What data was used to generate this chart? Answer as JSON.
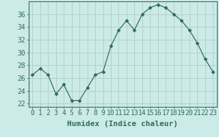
{
  "x": [
    0,
    1,
    2,
    3,
    4,
    5,
    6,
    7,
    8,
    9,
    10,
    11,
    12,
    13,
    14,
    15,
    16,
    17,
    18,
    19,
    20,
    21,
    22,
    23
  ],
  "y": [
    26.5,
    27.5,
    26.5,
    23.5,
    25.0,
    22.5,
    22.5,
    24.5,
    26.5,
    27.0,
    31.0,
    33.5,
    35.0,
    33.5,
    36.0,
    37.0,
    37.5,
    37.0,
    36.0,
    35.0,
    33.5,
    31.5,
    29.0,
    27.0
  ],
  "line_color": "#2d6b5e",
  "marker": "D",
  "marker_size": 2.5,
  "bg_color": "#cceae8",
  "grid_color": "#b0d0ce",
  "ylabel_ticks": [
    22,
    24,
    26,
    28,
    30,
    32,
    34,
    36
  ],
  "ylim": [
    21.5,
    38.0
  ],
  "xlim": [
    -0.5,
    23.5
  ],
  "xlabel": "Humidex (Indice chaleur)",
  "xlabel_fontsize": 8,
  "tick_fontsize": 7
}
